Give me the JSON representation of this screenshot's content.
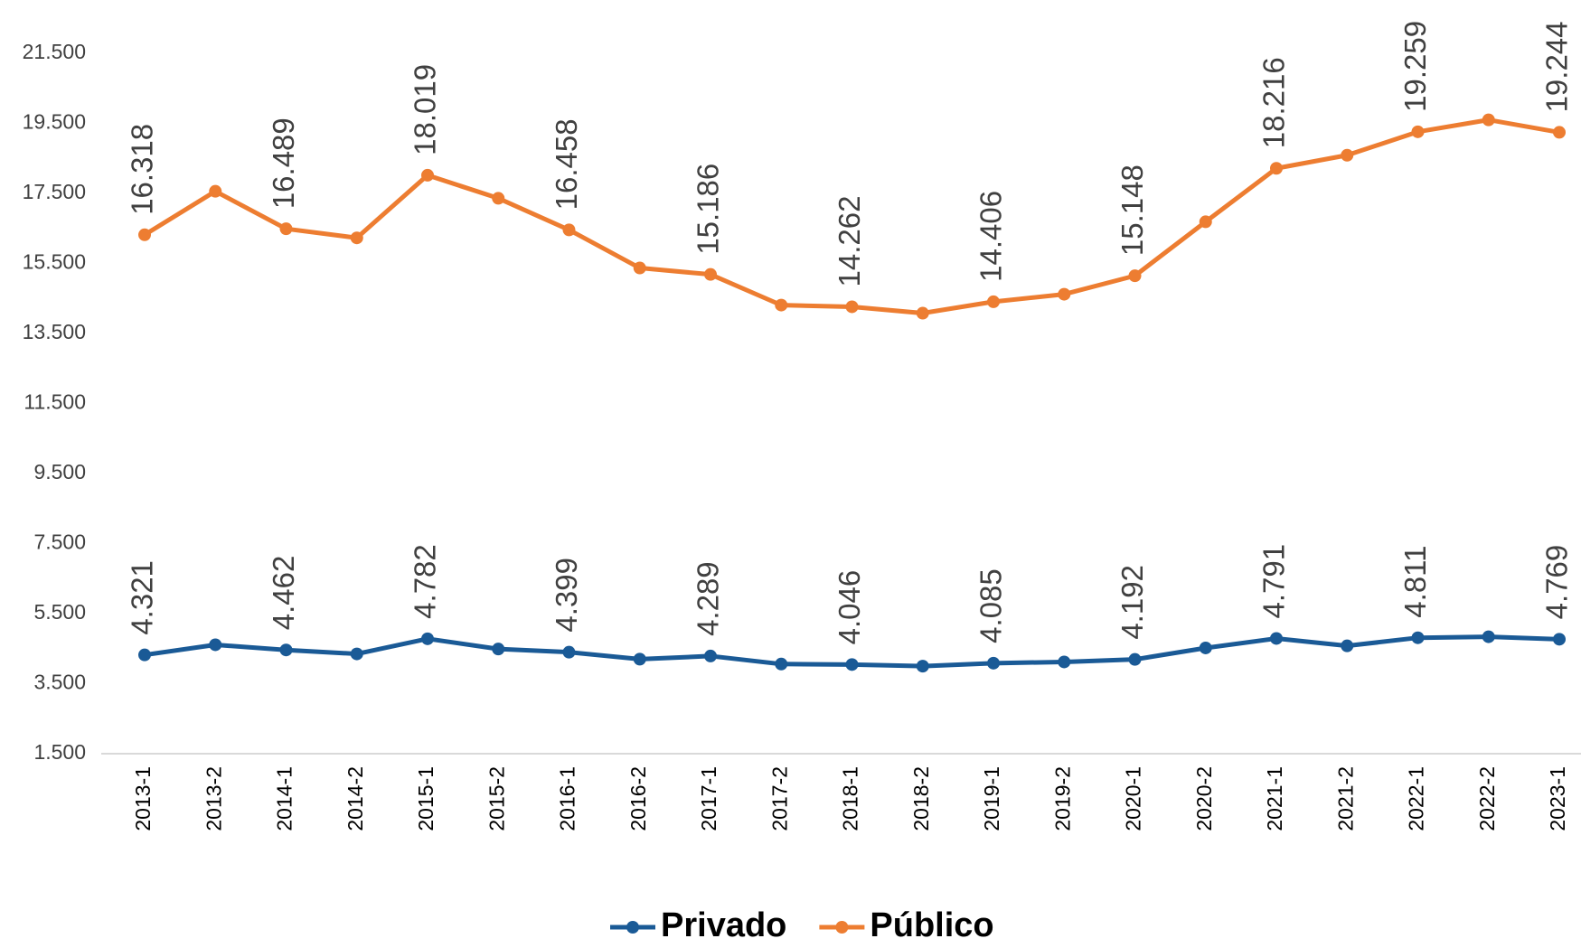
{
  "chart_data": {
    "type": "line",
    "categories": [
      "2013-1",
      "2013-2",
      "2014-1",
      "2014-2",
      "2015-1",
      "2015-2",
      "2016-1",
      "2016-2",
      "2017-1",
      "2017-2",
      "2018-1",
      "2018-2",
      "2019-1",
      "2019-2",
      "2020-1",
      "2020-2",
      "2021-1",
      "2021-2",
      "2022-1",
      "2022-2",
      "2023-1"
    ],
    "series": [
      {
        "name": "Privado",
        "color": "#1a5a96",
        "values": [
          4321,
          4610,
          4462,
          4350,
          4782,
          4490,
          4399,
          4200,
          4289,
          4060,
          4046,
          4000,
          4085,
          4120,
          4192,
          4520,
          4791,
          4580,
          4811,
          4840,
          4769
        ],
        "value_labels": [
          "4.321",
          null,
          "4.462",
          null,
          "4.782",
          null,
          "4.399",
          null,
          "4.289",
          null,
          "4.046",
          null,
          "4.085",
          null,
          "4.192",
          null,
          "4.791",
          null,
          "4.811",
          null,
          "4.769"
        ]
      },
      {
        "name": "Público",
        "color": "#ed7d31",
        "values": [
          16318,
          17560,
          16489,
          16230,
          18019,
          17360,
          16458,
          15370,
          15186,
          14310,
          14262,
          14080,
          14406,
          14620,
          15148,
          16690,
          18216,
          18590,
          19259,
          19600,
          19244
        ],
        "value_labels": [
          "16.318",
          null,
          "16.489",
          null,
          "18.019",
          null,
          "16.458",
          null,
          "15.186",
          null,
          "14.262",
          null,
          "14.406",
          null,
          "15.148",
          null,
          "18.216",
          null,
          "19.259",
          null,
          "19.244"
        ]
      }
    ],
    "ylim": [
      1500,
      21500
    ],
    "yticks": [
      {
        "value": 1500,
        "label": "1.500"
      },
      {
        "value": 3500,
        "label": "3.500"
      },
      {
        "value": 5500,
        "label": "5.500"
      },
      {
        "value": 7500,
        "label": "7.500"
      },
      {
        "value": 9500,
        "label": "9.500"
      },
      {
        "value": 11500,
        "label": "11.500"
      },
      {
        "value": 13500,
        "label": "13.500"
      },
      {
        "value": 15500,
        "label": "15.500"
      },
      {
        "value": 17500,
        "label": "17.500"
      },
      {
        "value": 19500,
        "label": "19.500"
      },
      {
        "value": 21500,
        "label": "21.500"
      }
    ],
    "legend": "bottom"
  }
}
